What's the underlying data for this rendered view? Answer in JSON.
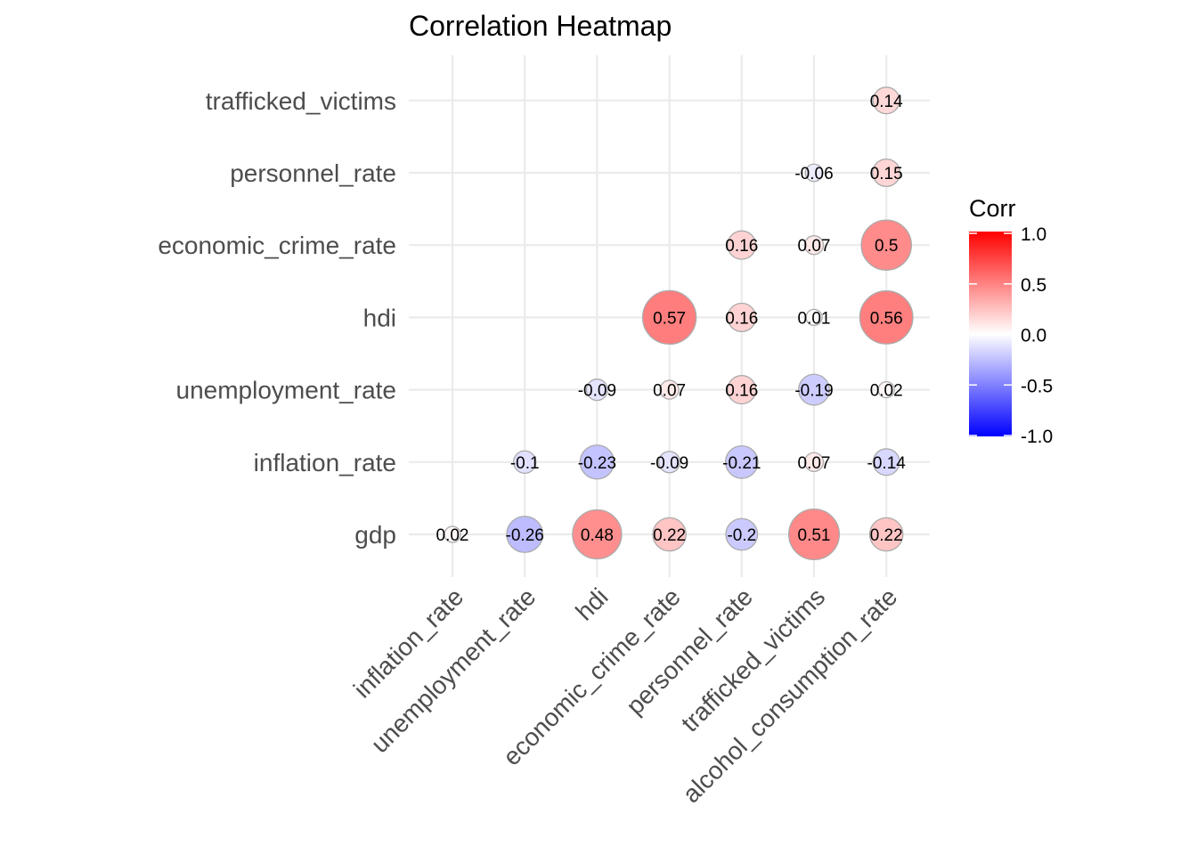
{
  "chart_data": {
    "type": "heatmap",
    "title": "Correlation Heatmap",
    "x_categories": [
      "inflation_rate",
      "unemployment_rate",
      "hdi",
      "economic_crime_rate",
      "personnel_rate",
      "trafficked_victims",
      "alcohol_consumption_rate"
    ],
    "y_categories": [
      "gdp",
      "inflation_rate",
      "unemployment_rate",
      "hdi",
      "economic_crime_rate",
      "personnel_rate",
      "trafficked_victims"
    ],
    "cells": [
      {
        "x": "inflation_rate",
        "y": "gdp",
        "value": 0.02,
        "label": "0.02"
      },
      {
        "x": "unemployment_rate",
        "y": "gdp",
        "value": -0.26,
        "label": "-0.26"
      },
      {
        "x": "hdi",
        "y": "gdp",
        "value": 0.48,
        "label": "0.48"
      },
      {
        "x": "economic_crime_rate",
        "y": "gdp",
        "value": 0.22,
        "label": "0.22"
      },
      {
        "x": "personnel_rate",
        "y": "gdp",
        "value": -0.2,
        "label": "-0.2"
      },
      {
        "x": "trafficked_victims",
        "y": "gdp",
        "value": 0.51,
        "label": "0.51"
      },
      {
        "x": "alcohol_consumption_rate",
        "y": "gdp",
        "value": 0.22,
        "label": "0.22"
      },
      {
        "x": "unemployment_rate",
        "y": "inflation_rate",
        "value": -0.1,
        "label": "-0.1"
      },
      {
        "x": "hdi",
        "y": "inflation_rate",
        "value": -0.23,
        "label": "-0.23"
      },
      {
        "x": "economic_crime_rate",
        "y": "inflation_rate",
        "value": -0.09,
        "label": "-0.09"
      },
      {
        "x": "personnel_rate",
        "y": "inflation_rate",
        "value": -0.21,
        "label": "-0.21"
      },
      {
        "x": "trafficked_victims",
        "y": "inflation_rate",
        "value": 0.07,
        "label": "0.07"
      },
      {
        "x": "alcohol_consumption_rate",
        "y": "inflation_rate",
        "value": -0.14,
        "label": "-0.14"
      },
      {
        "x": "hdi",
        "y": "unemployment_rate",
        "value": -0.09,
        "label": "-0.09"
      },
      {
        "x": "economic_crime_rate",
        "y": "unemployment_rate",
        "value": 0.07,
        "label": "0.07"
      },
      {
        "x": "personnel_rate",
        "y": "unemployment_rate",
        "value": 0.16,
        "label": "0.16"
      },
      {
        "x": "trafficked_victims",
        "y": "unemployment_rate",
        "value": -0.19,
        "label": "-0.19"
      },
      {
        "x": "alcohol_consumption_rate",
        "y": "unemployment_rate",
        "value": 0.02,
        "label": "0.02"
      },
      {
        "x": "economic_crime_rate",
        "y": "hdi",
        "value": 0.57,
        "label": "0.57"
      },
      {
        "x": "personnel_rate",
        "y": "hdi",
        "value": 0.16,
        "label": "0.16"
      },
      {
        "x": "trafficked_victims",
        "y": "hdi",
        "value": 0.01,
        "label": "0.01"
      },
      {
        "x": "alcohol_consumption_rate",
        "y": "hdi",
        "value": 0.56,
        "label": "0.56"
      },
      {
        "x": "personnel_rate",
        "y": "economic_crime_rate",
        "value": 0.16,
        "label": "0.16"
      },
      {
        "x": "trafficked_victims",
        "y": "economic_crime_rate",
        "value": 0.07,
        "label": "0.07"
      },
      {
        "x": "alcohol_consumption_rate",
        "y": "economic_crime_rate",
        "value": 0.5,
        "label": "0.5"
      },
      {
        "x": "trafficked_victims",
        "y": "personnel_rate",
        "value": -0.06,
        "label": "-0.06"
      },
      {
        "x": "alcohol_consumption_rate",
        "y": "personnel_rate",
        "value": 0.15,
        "label": "0.15"
      },
      {
        "x": "alcohol_consumption_rate",
        "y": "trafficked_victims",
        "value": 0.14,
        "label": "0.14"
      }
    ],
    "legend": {
      "title": "Corr",
      "placement": "right",
      "range": [
        -1.0,
        1.0
      ],
      "ticks": [
        {
          "value": 1.0,
          "label": "1.0"
        },
        {
          "value": 0.5,
          "label": "0.5"
        },
        {
          "value": 0.0,
          "label": "0.0"
        },
        {
          "value": -0.5,
          "label": "-0.5"
        },
        {
          "value": -1.0,
          "label": "-1.0"
        }
      ],
      "colors": {
        "low": "#0000ff",
        "mid": "#ffffff",
        "high": "#ff0000"
      }
    },
    "grid": true,
    "circle_border_color": "#aaaaaa"
  }
}
